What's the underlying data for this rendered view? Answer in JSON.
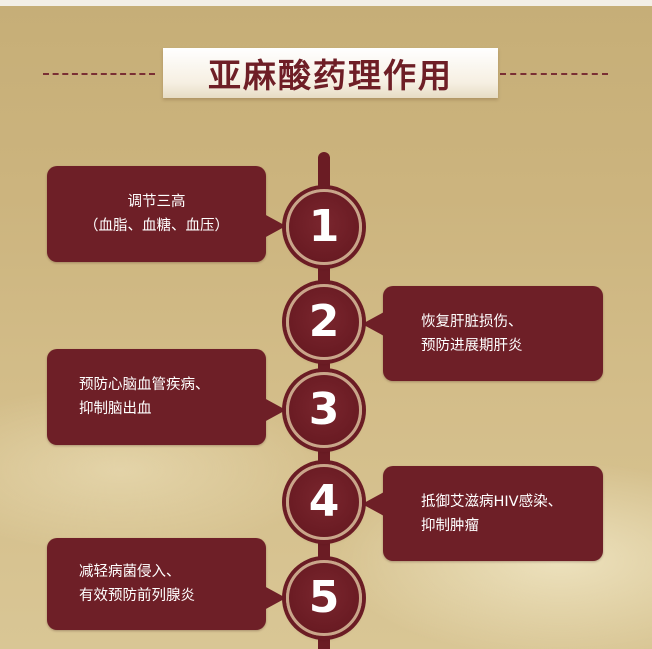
{
  "title": "亚麻酸药理作用",
  "items": [
    {
      "number": "1",
      "lines": [
        "调节三高",
        "（血脂、血糖、血压）"
      ]
    },
    {
      "number": "2",
      "lines": [
        "恢复肝脏损伤、",
        "预防进展期肝炎"
      ]
    },
    {
      "number": "3",
      "lines": [
        "预防心脑血管疾病、",
        "抑制脑出血"
      ]
    },
    {
      "number": "4",
      "lines": [
        "抵御艾滋病HIV感染、",
        "抑制肿瘤"
      ]
    },
    {
      "number": "5",
      "lines": [
        "减轻病菌侵入、",
        "有效预防前列腺炎"
      ]
    }
  ],
  "colors": {
    "accent": "#6e1f27",
    "background": "#cdb580",
    "title_text": "#6e1e26"
  }
}
